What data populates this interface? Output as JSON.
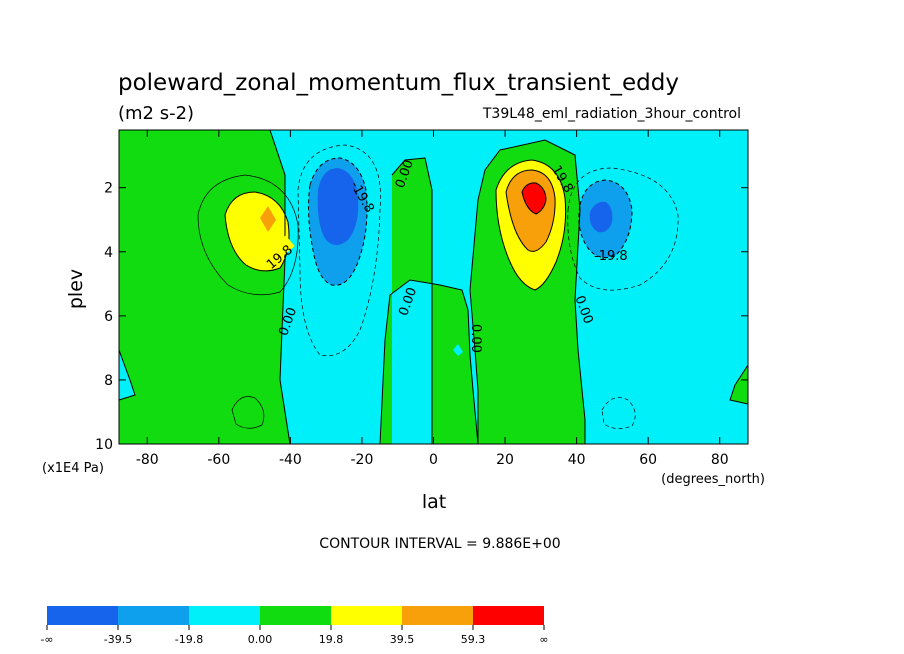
{
  "chart_data": {
    "type": "contour",
    "title": "poleward_zonal_momentum_flux_transient_eddy",
    "units": "(m2 s-2)",
    "dataset": "T39L48_eml_radiation_3hour_control",
    "xlabel": "lat",
    "xunits": "(degrees_north)",
    "ylabel": "plev",
    "yunits": "(x1E4 Pa)",
    "x_ticks": [
      "-80",
      "-60",
      "-40",
      "-20",
      "0",
      "20",
      "40",
      "60",
      "80"
    ],
    "x_tick_values": [
      -80,
      -60,
      -40,
      -20,
      0,
      20,
      40,
      60,
      80
    ],
    "y_ticks": [
      "2",
      "4",
      "6",
      "8",
      "10"
    ],
    "y_tick_values": [
      2,
      4,
      6,
      8,
      10
    ],
    "xlim": [
      -87.9,
      87.9
    ],
    "ylim": [
      10,
      0.2
    ],
    "y_inverted": true,
    "contour_interval_text": "CONTOUR INTERVAL = 9.886E+00",
    "contour_labels": [
      "19.8",
      "-19.8",
      "0.00",
      "0.00",
      "0.00",
      "19.8",
      "-19.8",
      "0.00",
      "0.00"
    ],
    "colorbar": {
      "labels": [
        "-∞",
        "-39.5",
        "-19.8",
        "0.00",
        "19.8",
        "39.5",
        "59.3",
        "∞"
      ],
      "values": [
        null,
        -39.5,
        -19.8,
        0.0,
        19.8,
        39.5,
        59.3,
        null
      ],
      "colors": [
        "#1764ec",
        "#0ea0ec",
        "#00f0fa",
        "#10dc10",
        "#ffff00",
        "#f8a00a",
        "#ff0000"
      ]
    },
    "features": [
      {
        "name": "sh-positive-max",
        "lat": -47,
        "plev": 3,
        "value_range": [
          19.8,
          39.5
        ]
      },
      {
        "name": "sh-negative-min",
        "lat": -29,
        "plev": 2.5,
        "value_range": [
          -39.5,
          -19.8
        ]
      },
      {
        "name": "nh-positive-max",
        "lat": 28,
        "plev": 2.2,
        "value_range": [
          59.3,
          79.1
        ]
      },
      {
        "name": "nh-negative-min",
        "lat": 46,
        "plev": 2.9,
        "value_range": [
          -39.5,
          -19.8
        ]
      }
    ]
  }
}
